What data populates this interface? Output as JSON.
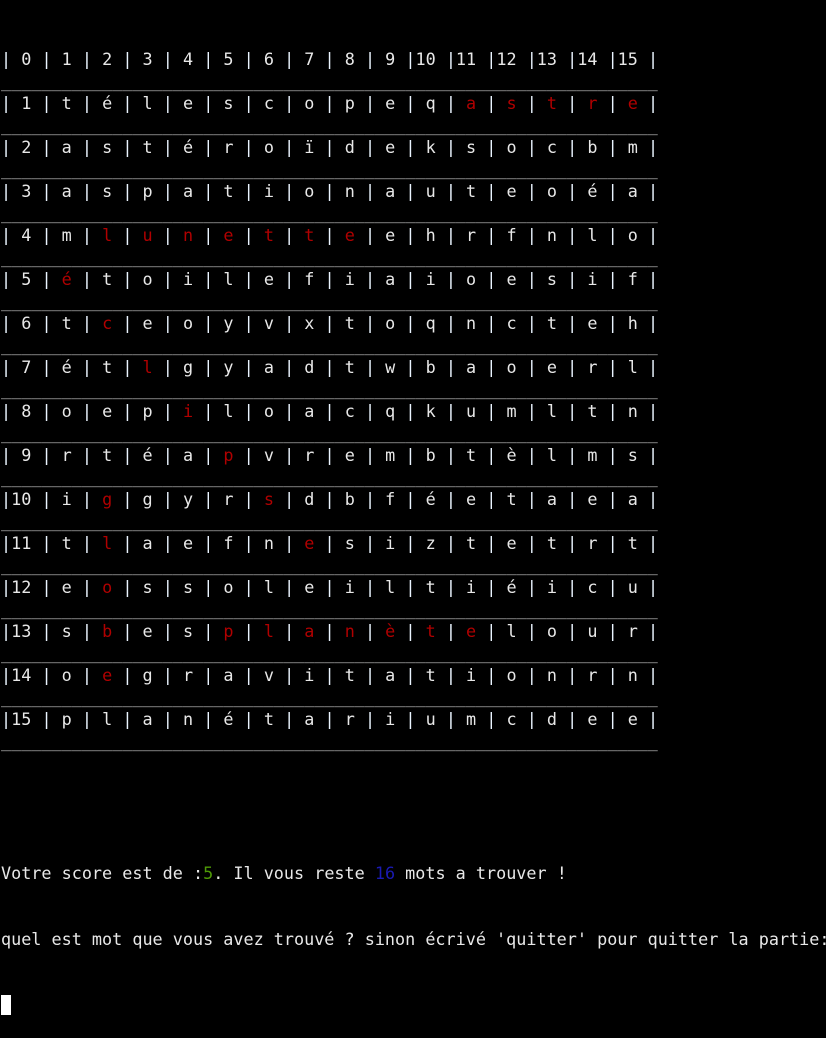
{
  "header": [
    "0",
    "1",
    "2",
    "3",
    "4",
    "5",
    "6",
    "7",
    "8",
    "9",
    "10",
    "11",
    "12",
    "13",
    "14",
    "15"
  ],
  "grid": [
    {
      "label": "1",
      "letters": [
        "t",
        "é",
        "l",
        "e",
        "s",
        "c",
        "o",
        "p",
        "e",
        "q",
        "a",
        "s",
        "t",
        "r",
        "e"
      ],
      "found": [
        11,
        12,
        13,
        14,
        15
      ]
    },
    {
      "label": "2",
      "letters": [
        "a",
        "s",
        "t",
        "é",
        "r",
        "o",
        "ï",
        "d",
        "e",
        "k",
        "s",
        "o",
        "c",
        "b",
        "m"
      ],
      "found": []
    },
    {
      "label": "3",
      "letters": [
        "a",
        "s",
        "p",
        "a",
        "t",
        "i",
        "o",
        "n",
        "a",
        "u",
        "t",
        "e",
        "o",
        "é",
        "a"
      ],
      "found": []
    },
    {
      "label": "4",
      "letters": [
        "m",
        "l",
        "u",
        "n",
        "e",
        "t",
        "t",
        "e",
        "e",
        "h",
        "r",
        "f",
        "n",
        "l",
        "o"
      ],
      "found": [
        2,
        3,
        4,
        5,
        6,
        7,
        8
      ]
    },
    {
      "label": "5",
      "letters": [
        "é",
        "t",
        "o",
        "i",
        "l",
        "e",
        "f",
        "i",
        "a",
        "i",
        "o",
        "e",
        "s",
        "i",
        "f"
      ],
      "found": [
        1
      ]
    },
    {
      "label": "6",
      "letters": [
        "t",
        "c",
        "e",
        "o",
        "y",
        "v",
        "x",
        "t",
        "o",
        "q",
        "n",
        "c",
        "t",
        "e",
        "h"
      ],
      "found": [
        2
      ]
    },
    {
      "label": "7",
      "letters": [
        "é",
        "t",
        "l",
        "g",
        "y",
        "a",
        "d",
        "t",
        "w",
        "b",
        "a",
        "o",
        "e",
        "r",
        "l"
      ],
      "found": [
        3
      ]
    },
    {
      "label": "8",
      "letters": [
        "o",
        "e",
        "p",
        "i",
        "l",
        "o",
        "a",
        "c",
        "q",
        "k",
        "u",
        "m",
        "l",
        "t",
        "n"
      ],
      "found": [
        4
      ]
    },
    {
      "label": "9",
      "letters": [
        "r",
        "t",
        "é",
        "a",
        "p",
        "v",
        "r",
        "e",
        "m",
        "b",
        "t",
        "è",
        "l",
        "m",
        "s"
      ],
      "found": [
        5
      ]
    },
    {
      "label": "10",
      "letters": [
        "i",
        "g",
        "g",
        "y",
        "r",
        "s",
        "d",
        "b",
        "f",
        "é",
        "e",
        "t",
        "a",
        "e",
        "a"
      ],
      "found": [
        2,
        6
      ]
    },
    {
      "label": "11",
      "letters": [
        "t",
        "l",
        "a",
        "e",
        "f",
        "n",
        "e",
        "s",
        "i",
        "z",
        "t",
        "e",
        "t",
        "r",
        "t"
      ],
      "found": [
        2,
        7
      ]
    },
    {
      "label": "12",
      "letters": [
        "e",
        "o",
        "s",
        "s",
        "o",
        "l",
        "e",
        "i",
        "l",
        "t",
        "i",
        "é",
        "i",
        "c",
        "u"
      ],
      "found": [
        2
      ]
    },
    {
      "label": "13",
      "letters": [
        "s",
        "b",
        "e",
        "s",
        "p",
        "l",
        "a",
        "n",
        "è",
        "t",
        "e",
        "l",
        "o",
        "u",
        "r"
      ],
      "found": [
        2,
        5,
        6,
        7,
        8,
        9,
        10,
        11
      ]
    },
    {
      "label": "14",
      "letters": [
        "o",
        "e",
        "g",
        "r",
        "a",
        "v",
        "i",
        "t",
        "a",
        "t",
        "i",
        "o",
        "n",
        "r",
        "n"
      ],
      "found": [
        2
      ]
    },
    {
      "label": "15",
      "letters": [
        "p",
        "l",
        "a",
        "n",
        "é",
        "t",
        "a",
        "r",
        "i",
        "u",
        "m",
        "c",
        "d",
        "e",
        "e"
      ],
      "found": []
    }
  ],
  "status": {
    "score_prefix": "Votre score est de :",
    "score": "5",
    "middle": ". Il vous reste ",
    "remaining": "16",
    "suffix": " mots a trouver !"
  },
  "prompt": "quel est mot que vous avez trouvé ? sinon écrivé 'quitter' pour quitter la partie:",
  "colors": {
    "found": "#b00000",
    "score": "#4e9a06",
    "remaining": "#1a1ab4",
    "background": "#000000",
    "text": "#e8e8e8"
  }
}
